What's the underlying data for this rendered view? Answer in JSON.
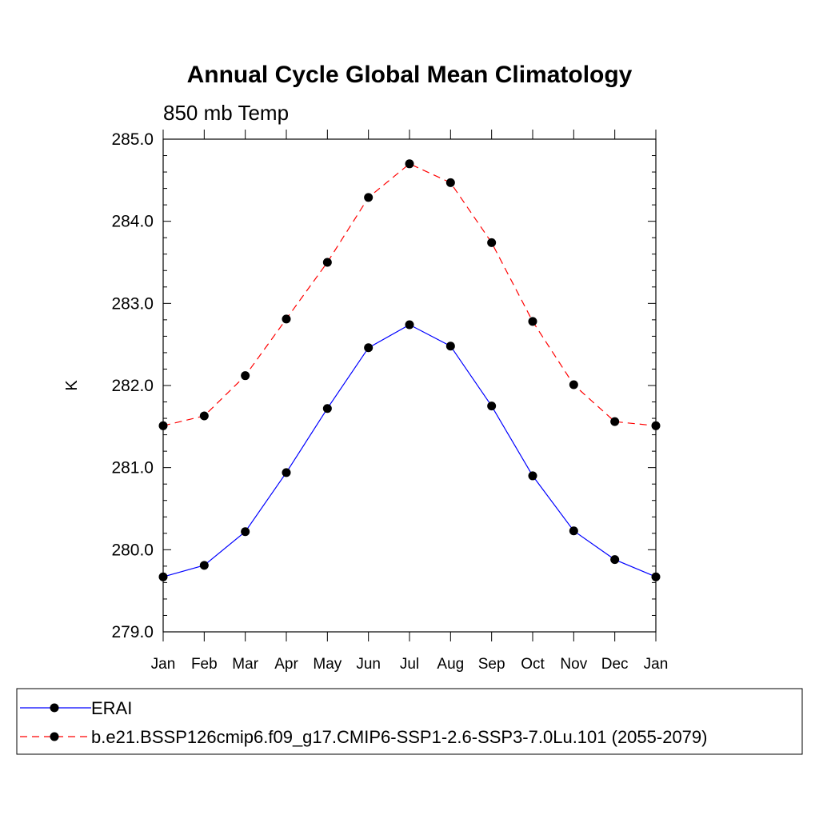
{
  "chart_data": {
    "type": "line",
    "title": "Annual Cycle Global Mean Climatology",
    "subtitle": "850 mb Temp",
    "xlabel": "",
    "ylabel": "K",
    "categories": [
      "Jan",
      "Feb",
      "Mar",
      "Apr",
      "May",
      "Jun",
      "Jul",
      "Aug",
      "Sep",
      "Oct",
      "Nov",
      "Dec",
      "Jan"
    ],
    "ylim": [
      279.0,
      285.0
    ],
    "yticks": [
      "279.0",
      "280.0",
      "281.0",
      "282.0",
      "283.0",
      "284.0",
      "285.0"
    ],
    "grid": false,
    "legend_position": "bottom",
    "series": [
      {
        "name": "ERAI",
        "color": "#0000ff",
        "line_style": "solid",
        "marker": "filled-circle",
        "values": [
          279.67,
          279.81,
          280.22,
          280.94,
          281.72,
          282.46,
          282.74,
          282.48,
          281.75,
          280.9,
          280.23,
          279.88,
          279.67
        ]
      },
      {
        "name": "b.e21.BSSP126cmip6.f09_g17.CMIP6-SSP1-2.6-SSP3-7.0Lu.101 (2055-2079)",
        "color": "#ff0000",
        "line_style": "dashed",
        "marker": "filled-circle",
        "values": [
          281.51,
          281.63,
          282.12,
          282.81,
          283.5,
          284.29,
          284.7,
          284.47,
          283.74,
          282.78,
          282.01,
          281.56,
          281.51
        ]
      }
    ]
  }
}
